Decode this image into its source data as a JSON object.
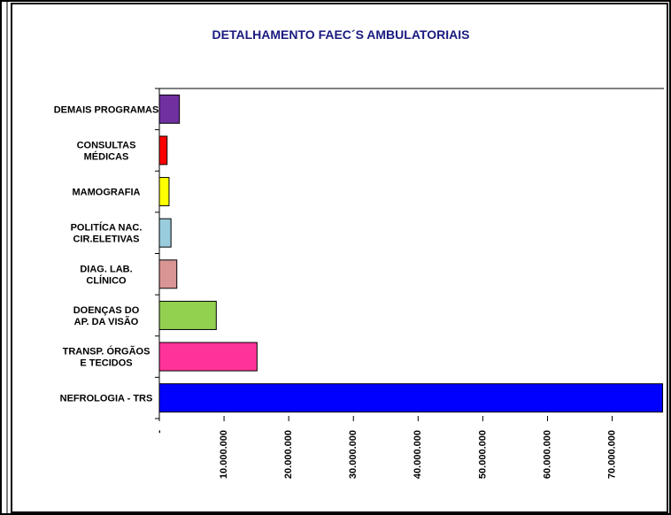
{
  "chart_data": {
    "type": "bar",
    "orientation": "horizontal",
    "title": "DETALHAMENTO FAEC´S AMBULATORIAIS",
    "categories": [
      "DEMAIS PROGRAMAS",
      "CONSULTAS\nMÉDICAS",
      "MAMOGRAFIA",
      "POLITÍCA NAC.\nCIR.ELETIVAS",
      "DIAG. LAB.\nCLÍNICO",
      "DOENÇAS DO\nAP. DA VISÃO",
      "TRANSP. ÓRGÃOS\nE TECIDOS",
      "NEFROLOGIA - TRS"
    ],
    "values": [
      3100000,
      1200000,
      1500000,
      1800000,
      2700000,
      8800000,
      15100000,
      77800000
    ],
    "colors": [
      "#7030a0",
      "#ff0000",
      "#ffff00",
      "#99ccdd",
      "#d99594",
      "#92d050",
      "#ff3399",
      "#0000ff"
    ],
    "xlim": [
      0,
      78000000
    ],
    "xticks": [
      {
        "value": 0,
        "label": "-"
      },
      {
        "value": 10000000,
        "label": "10.000.000"
      },
      {
        "value": 20000000,
        "label": "20.000.000"
      },
      {
        "value": 30000000,
        "label": "30.000.000"
      },
      {
        "value": 40000000,
        "label": "40.000.000"
      },
      {
        "value": 50000000,
        "label": "50.000.000"
      },
      {
        "value": 60000000,
        "label": "60.000.000"
      },
      {
        "value": 70000000,
        "label": "70.000.000"
      }
    ],
    "grid": false
  }
}
